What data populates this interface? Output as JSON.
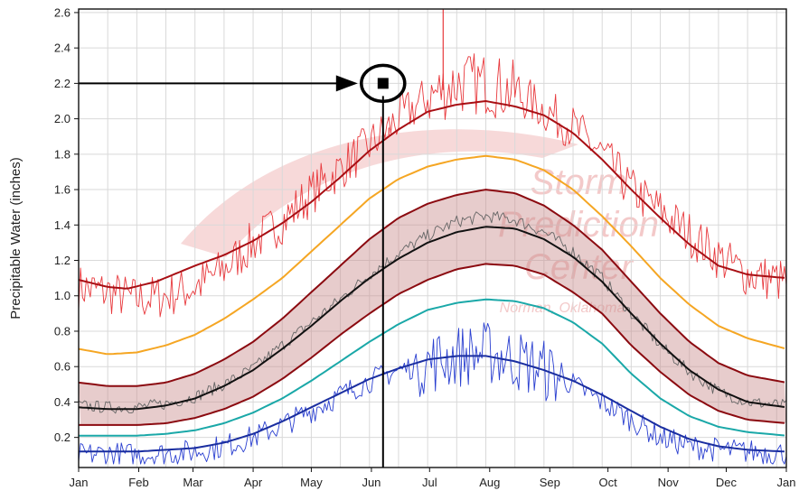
{
  "chart_data": {
    "type": "line",
    "ylabel": "Precipitable Water (inches)",
    "ylim": [
      0.03,
      2.62
    ],
    "xlim": [
      0,
      365
    ],
    "y_ticks": [
      0.2,
      0.4,
      0.6,
      0.8,
      1.0,
      1.2,
      1.4,
      1.6,
      1.8,
      2.0,
      2.2,
      2.4,
      2.6
    ],
    "y_tick_labels": [
      "0.2",
      "0.4",
      "0.6",
      "0.8",
      "1.0",
      "1.2",
      "1.4",
      "1.6",
      "1.8",
      "2.0",
      "2.2",
      "2.4",
      "2.6"
    ],
    "month_ticks": [
      {
        "label": "Jan",
        "day": 0
      },
      {
        "label": "Feb",
        "day": 31
      },
      {
        "label": "Mar",
        "day": 59
      },
      {
        "label": "Apr",
        "day": 90
      },
      {
        "label": "May",
        "day": 120
      },
      {
        "label": "Jun",
        "day": 151
      },
      {
        "label": "Jul",
        "day": 181
      },
      {
        "label": "Aug",
        "day": 212
      },
      {
        "label": "Sep",
        "day": 243
      },
      {
        "label": "Oct",
        "day": 273
      },
      {
        "label": "Nov",
        "day": 304
      },
      {
        "label": "Dec",
        "day": 334
      },
      {
        "label": "Jan",
        "day": 365
      }
    ],
    "grid": true,
    "x_grid_step_days": 15,
    "series": [
      {
        "key": "max_observed",
        "color": "#e8393d",
        "noisy": true,
        "points": [
          [
            0,
            1.05
          ],
          [
            15,
            1.02
          ],
          [
            30,
            0.98
          ],
          [
            45,
            1.0
          ],
          [
            60,
            1.05
          ],
          [
            75,
            1.15
          ],
          [
            90,
            1.3
          ],
          [
            105,
            1.42
          ],
          [
            120,
            1.58
          ],
          [
            135,
            1.72
          ],
          [
            150,
            1.85
          ],
          [
            165,
            2.0
          ],
          [
            180,
            2.12
          ],
          [
            195,
            2.2
          ],
          [
            210,
            2.2
          ],
          [
            225,
            2.15
          ],
          [
            240,
            2.05
          ],
          [
            255,
            1.95
          ],
          [
            270,
            1.8
          ],
          [
            285,
            1.6
          ],
          [
            300,
            1.48
          ],
          [
            315,
            1.35
          ],
          [
            330,
            1.22
          ],
          [
            345,
            1.12
          ],
          [
            365,
            1.08
          ]
        ]
      },
      {
        "key": "max_moving_avg",
        "color": "#a80f14",
        "points": [
          [
            0,
            1.09
          ],
          [
            15,
            1.05
          ],
          [
            25,
            1.04
          ],
          [
            40,
            1.08
          ],
          [
            60,
            1.17
          ],
          [
            75,
            1.23
          ],
          [
            90,
            1.31
          ],
          [
            105,
            1.41
          ],
          [
            120,
            1.53
          ],
          [
            135,
            1.67
          ],
          [
            150,
            1.82
          ],
          [
            165,
            1.94
          ],
          [
            180,
            2.04
          ],
          [
            195,
            2.08
          ],
          [
            210,
            2.1
          ],
          [
            225,
            2.07
          ],
          [
            240,
            2.02
          ],
          [
            255,
            1.92
          ],
          [
            270,
            1.77
          ],
          [
            285,
            1.6
          ],
          [
            300,
            1.44
          ],
          [
            315,
            1.29
          ],
          [
            330,
            1.17
          ],
          [
            345,
            1.12
          ],
          [
            365,
            1.1
          ]
        ]
      },
      {
        "key": "percentile_99",
        "color": "#f5a623",
        "points": [
          [
            0,
            0.7
          ],
          [
            15,
            0.67
          ],
          [
            30,
            0.68
          ],
          [
            45,
            0.72
          ],
          [
            60,
            0.78
          ],
          [
            75,
            0.87
          ],
          [
            90,
            0.98
          ],
          [
            105,
            1.1
          ],
          [
            120,
            1.25
          ],
          [
            135,
            1.4
          ],
          [
            150,
            1.55
          ],
          [
            165,
            1.66
          ],
          [
            180,
            1.73
          ],
          [
            195,
            1.77
          ],
          [
            210,
            1.79
          ],
          [
            225,
            1.77
          ],
          [
            240,
            1.71
          ],
          [
            255,
            1.6
          ],
          [
            270,
            1.45
          ],
          [
            285,
            1.28
          ],
          [
            300,
            1.1
          ],
          [
            315,
            0.95
          ],
          [
            330,
            0.83
          ],
          [
            345,
            0.76
          ],
          [
            365,
            0.7
          ]
        ]
      },
      {
        "key": "percentile_90",
        "color": "#8b0a10",
        "points": [
          [
            0,
            0.51
          ],
          [
            15,
            0.49
          ],
          [
            30,
            0.49
          ],
          [
            45,
            0.51
          ],
          [
            60,
            0.56
          ],
          [
            75,
            0.64
          ],
          [
            90,
            0.74
          ],
          [
            105,
            0.87
          ],
          [
            120,
            1.02
          ],
          [
            135,
            1.17
          ],
          [
            150,
            1.32
          ],
          [
            165,
            1.44
          ],
          [
            180,
            1.52
          ],
          [
            195,
            1.57
          ],
          [
            210,
            1.6
          ],
          [
            225,
            1.58
          ],
          [
            240,
            1.51
          ],
          [
            255,
            1.4
          ],
          [
            270,
            1.26
          ],
          [
            285,
            1.08
          ],
          [
            300,
            0.9
          ],
          [
            315,
            0.74
          ],
          [
            330,
            0.62
          ],
          [
            345,
            0.55
          ],
          [
            365,
            0.51
          ]
        ]
      },
      {
        "key": "mean",
        "color": "#111111",
        "points": [
          [
            0,
            0.37
          ],
          [
            15,
            0.36
          ],
          [
            30,
            0.36
          ],
          [
            45,
            0.38
          ],
          [
            60,
            0.42
          ],
          [
            75,
            0.49
          ],
          [
            90,
            0.58
          ],
          [
            105,
            0.7
          ],
          [
            120,
            0.83
          ],
          [
            135,
            0.97
          ],
          [
            150,
            1.1
          ],
          [
            165,
            1.21
          ],
          [
            180,
            1.3
          ],
          [
            195,
            1.36
          ],
          [
            210,
            1.39
          ],
          [
            225,
            1.38
          ],
          [
            240,
            1.32
          ],
          [
            255,
            1.22
          ],
          [
            270,
            1.08
          ],
          [
            285,
            0.9
          ],
          [
            300,
            0.73
          ],
          [
            315,
            0.58
          ],
          [
            330,
            0.47
          ],
          [
            345,
            0.4
          ],
          [
            365,
            0.37
          ]
        ]
      },
      {
        "key": "mean_observed",
        "color": "#666666",
        "noisy": true,
        "points": [
          [
            0,
            0.38
          ],
          [
            15,
            0.37
          ],
          [
            30,
            0.37
          ],
          [
            45,
            0.39
          ],
          [
            60,
            0.43
          ],
          [
            75,
            0.5
          ],
          [
            90,
            0.59
          ],
          [
            105,
            0.72
          ],
          [
            120,
            0.85
          ],
          [
            135,
            0.98
          ],
          [
            150,
            1.12
          ],
          [
            165,
            1.24
          ],
          [
            180,
            1.34
          ],
          [
            195,
            1.42
          ],
          [
            210,
            1.45
          ],
          [
            225,
            1.43
          ],
          [
            240,
            1.36
          ],
          [
            255,
            1.25
          ],
          [
            270,
            1.1
          ],
          [
            285,
            0.9
          ],
          [
            300,
            0.72
          ],
          [
            315,
            0.57
          ],
          [
            330,
            0.46
          ],
          [
            345,
            0.4
          ],
          [
            365,
            0.38
          ]
        ]
      },
      {
        "key": "percentile_10",
        "color": "#8b0a10",
        "points": [
          [
            0,
            0.27
          ],
          [
            15,
            0.27
          ],
          [
            30,
            0.27
          ],
          [
            45,
            0.28
          ],
          [
            60,
            0.31
          ],
          [
            75,
            0.36
          ],
          [
            90,
            0.43
          ],
          [
            105,
            0.53
          ],
          [
            120,
            0.65
          ],
          [
            135,
            0.78
          ],
          [
            150,
            0.9
          ],
          [
            165,
            1.01
          ],
          [
            180,
            1.09
          ],
          [
            195,
            1.15
          ],
          [
            210,
            1.18
          ],
          [
            225,
            1.17
          ],
          [
            240,
            1.12
          ],
          [
            255,
            1.02
          ],
          [
            270,
            0.9
          ],
          [
            285,
            0.72
          ],
          [
            300,
            0.57
          ],
          [
            315,
            0.44
          ],
          [
            330,
            0.35
          ],
          [
            345,
            0.3
          ],
          [
            365,
            0.28
          ]
        ]
      },
      {
        "key": "percentile_1",
        "color": "#1aa8a8",
        "points": [
          [
            0,
            0.21
          ],
          [
            15,
            0.21
          ],
          [
            30,
            0.21
          ],
          [
            45,
            0.22
          ],
          [
            60,
            0.24
          ],
          [
            75,
            0.28
          ],
          [
            90,
            0.34
          ],
          [
            105,
            0.42
          ],
          [
            120,
            0.52
          ],
          [
            135,
            0.63
          ],
          [
            150,
            0.74
          ],
          [
            165,
            0.84
          ],
          [
            180,
            0.92
          ],
          [
            195,
            0.96
          ],
          [
            210,
            0.98
          ],
          [
            225,
            0.97
          ],
          [
            240,
            0.93
          ],
          [
            255,
            0.85
          ],
          [
            270,
            0.73
          ],
          [
            285,
            0.56
          ],
          [
            300,
            0.42
          ],
          [
            315,
            0.32
          ],
          [
            330,
            0.26
          ],
          [
            345,
            0.23
          ],
          [
            365,
            0.21
          ]
        ]
      },
      {
        "key": "min_moving_avg",
        "color": "#1a2ea0",
        "points": [
          [
            0,
            0.12
          ],
          [
            15,
            0.12
          ],
          [
            30,
            0.12
          ],
          [
            45,
            0.13
          ],
          [
            60,
            0.14
          ],
          [
            75,
            0.17
          ],
          [
            90,
            0.22
          ],
          [
            105,
            0.29
          ],
          [
            120,
            0.37
          ],
          [
            135,
            0.45
          ],
          [
            150,
            0.53
          ],
          [
            165,
            0.59
          ],
          [
            180,
            0.64
          ],
          [
            195,
            0.66
          ],
          [
            210,
            0.66
          ],
          [
            225,
            0.63
          ],
          [
            240,
            0.58
          ],
          [
            255,
            0.52
          ],
          [
            270,
            0.44
          ],
          [
            285,
            0.35
          ],
          [
            300,
            0.26
          ],
          [
            315,
            0.19
          ],
          [
            330,
            0.15
          ],
          [
            345,
            0.13
          ],
          [
            365,
            0.12
          ]
        ]
      },
      {
        "key": "min_observed",
        "color": "#2a3fd0",
        "noisy": true,
        "points": [
          [
            0,
            0.1
          ],
          [
            15,
            0.11
          ],
          [
            30,
            0.1
          ],
          [
            45,
            0.11
          ],
          [
            60,
            0.12
          ],
          [
            75,
            0.15
          ],
          [
            90,
            0.2
          ],
          [
            105,
            0.27
          ],
          [
            120,
            0.35
          ],
          [
            135,
            0.44
          ],
          [
            150,
            0.52
          ],
          [
            165,
            0.58
          ],
          [
            180,
            0.62
          ],
          [
            195,
            0.66
          ],
          [
            210,
            0.68
          ],
          [
            225,
            0.64
          ],
          [
            240,
            0.58
          ],
          [
            255,
            0.5
          ],
          [
            270,
            0.4
          ],
          [
            285,
            0.3
          ],
          [
            300,
            0.2
          ],
          [
            315,
            0.15
          ],
          [
            330,
            0.13
          ],
          [
            345,
            0.12
          ],
          [
            365,
            0.11
          ]
        ]
      }
    ],
    "band": {
      "upper": "percentile_90",
      "lower": "percentile_10",
      "color": "#c98d8d",
      "opacity": 0.45
    },
    "spikes": [
      [
        188,
        2.62
      ],
      [
        160,
        1.9
      ]
    ],
    "annotation": {
      "day": 157,
      "value": 2.2,
      "marker": "filled-square-in-circle",
      "arrow_from_day": 0,
      "vertical_line_to_day": 157
    },
    "watermark": {
      "lines": [
        "Storm",
        "Prediction",
        "Center",
        "Norman, Oklahoma"
      ],
      "color": "#f3c9c9"
    }
  }
}
